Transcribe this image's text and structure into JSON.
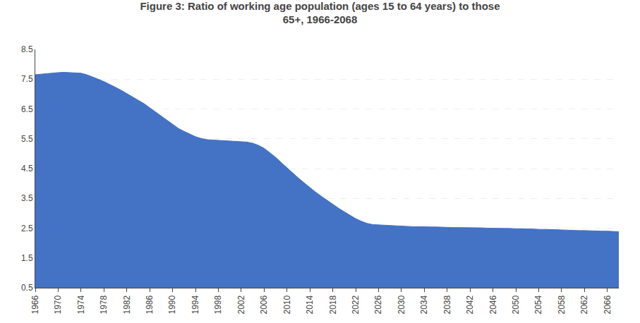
{
  "chart_data": {
    "type": "area",
    "title": "Figure 3: Ratio of working age population (ages 15 to 64 years) to those\n65+, 1966-2068",
    "color": "#4472C4",
    "grid": true,
    "x": [
      1966,
      1967,
      1968,
      1969,
      1970,
      1971,
      1972,
      1973,
      1974,
      1975,
      1976,
      1977,
      1978,
      1979,
      1980,
      1981,
      1982,
      1983,
      1984,
      1985,
      1986,
      1987,
      1988,
      1989,
      1990,
      1991,
      1992,
      1993,
      1994,
      1995,
      1996,
      1997,
      1998,
      1999,
      2000,
      2001,
      2002,
      2003,
      2004,
      2005,
      2006,
      2007,
      2008,
      2009,
      2010,
      2011,
      2012,
      2013,
      2014,
      2015,
      2016,
      2017,
      2018,
      2019,
      2020,
      2021,
      2022,
      2023,
      2024,
      2025,
      2026,
      2027,
      2028,
      2029,
      2030,
      2031,
      2032,
      2033,
      2034,
      2035,
      2036,
      2037,
      2038,
      2039,
      2040,
      2041,
      2042,
      2043,
      2044,
      2045,
      2046,
      2047,
      2048,
      2049,
      2050,
      2051,
      2052,
      2053,
      2054,
      2055,
      2056,
      2057,
      2058,
      2059,
      2060,
      2061,
      2062,
      2063,
      2064,
      2065,
      2066,
      2067,
      2068
    ],
    "values": [
      7.65,
      7.67,
      7.69,
      7.71,
      7.72,
      7.73,
      7.72,
      7.71,
      7.7,
      7.65,
      7.58,
      7.5,
      7.42,
      7.33,
      7.23,
      7.13,
      7.02,
      6.92,
      6.8,
      6.68,
      6.54,
      6.4,
      6.26,
      6.12,
      5.97,
      5.85,
      5.75,
      5.65,
      5.57,
      5.51,
      5.47,
      5.46,
      5.45,
      5.44,
      5.43,
      5.42,
      5.41,
      5.39,
      5.35,
      5.28,
      5.18,
      5.04,
      4.88,
      4.7,
      4.52,
      4.35,
      4.18,
      4.02,
      3.86,
      3.71,
      3.57,
      3.43,
      3.3,
      3.17,
      3.05,
      2.93,
      2.82,
      2.73,
      2.66,
      2.62,
      2.61,
      2.59,
      2.58,
      2.57,
      2.56,
      2.56,
      2.55,
      2.55,
      2.54,
      2.54,
      2.54,
      2.53,
      2.53,
      2.52,
      2.52,
      2.52,
      2.51,
      2.51,
      2.51,
      2.5,
      2.5,
      2.5,
      2.49,
      2.49,
      2.48,
      2.48,
      2.47,
      2.47,
      2.46,
      2.46,
      2.45,
      2.45,
      2.44,
      2.43,
      2.43,
      2.42,
      2.42,
      2.41,
      2.4,
      2.4,
      2.4,
      2.39,
      2.38
    ],
    "xlim": [
      1966,
      2068
    ],
    "xticks": [
      1966,
      1970,
      1974,
      1978,
      1982,
      1986,
      1990,
      1994,
      1998,
      2002,
      2006,
      2010,
      2014,
      2018,
      2022,
      2026,
      2030,
      2034,
      2038,
      2042,
      2046,
      2050,
      2054,
      2058,
      2062,
      2066
    ],
    "ylim": [
      0.5,
      8.5
    ],
    "yticks": [
      0.5,
      1.5,
      2.5,
      3.5,
      4.5,
      5.5,
      6.5,
      7.5,
      8.5
    ]
  }
}
